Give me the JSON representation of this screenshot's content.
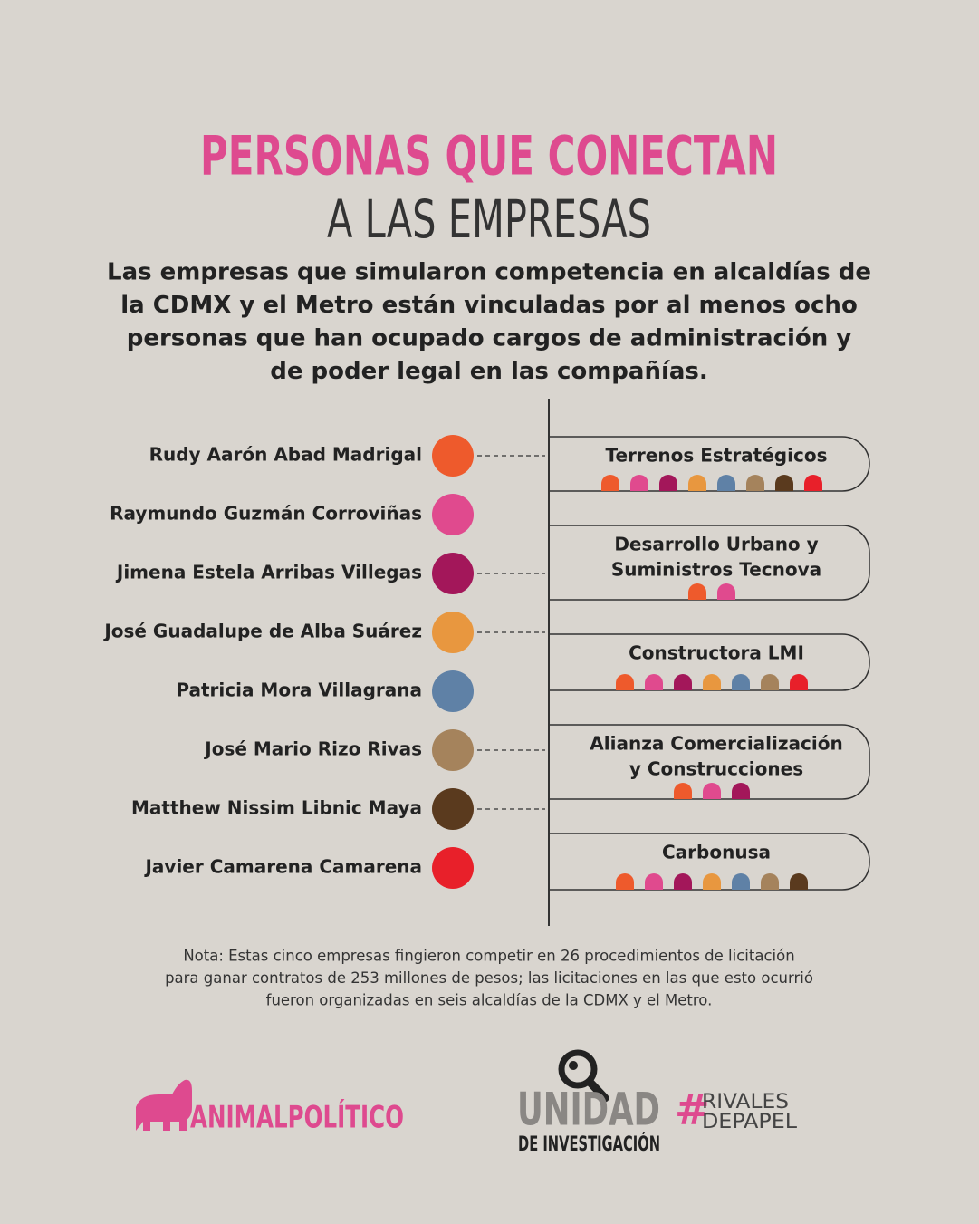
{
  "header": {
    "title_line1": "PERSONAS QUE CONECTAN",
    "title_line2": "A LAS EMPRESAS",
    "intro_lines": [
      "Las empresas que simularon competencia en alcaldías de",
      "la CDMX y el Metro están vinculadas por al menos ocho",
      "personas que han ocupado cargos de administración y",
      "de poder legal en las compañías."
    ]
  },
  "people": [
    {
      "name": "Rudy Aarón Abad Madrigal",
      "color": "#ee5a2c"
    },
    {
      "name": "Raymundo Guzmán Corroviñas",
      "color": "#e04a8e"
    },
    {
      "name": "Jimena Estela Arribas Villegas",
      "color": "#a3175a"
    },
    {
      "name": "José Guadalupe de Alba Suárez",
      "color": "#e8973f"
    },
    {
      "name": "Patricia Mora Villagrana",
      "color": "#5f81a6"
    },
    {
      "name": "José Mario Rizo Rivas",
      "color": "#a5835c"
    },
    {
      "name": "Matthew Nissim Libnic Maya",
      "color": "#5a3a1e"
    },
    {
      "name": "Javier Camarena Camarena",
      "color": "#e8202a"
    }
  ],
  "companies": [
    {
      "name_lines": [
        "Terrenos Estratégicos"
      ],
      "dots": [
        "#ee5a2c",
        "#e04a8e",
        "#a3175a",
        "#e8973f",
        "#5f81a6",
        "#a5835c",
        "#5a3a1e",
        "#e8202a"
      ]
    },
    {
      "name_lines": [
        "Desarrollo Urbano y",
        "Suministros Tecnova"
      ],
      "dots": [
        "#ee5a2c",
        "#e04a8e"
      ]
    },
    {
      "name_lines": [
        "Constructora LMI"
      ],
      "dots": [
        "#ee5a2c",
        "#e04a8e",
        "#a3175a",
        "#e8973f",
        "#5f81a6",
        "#a5835c",
        "#e8202a"
      ]
    },
    {
      "name_lines": [
        "Alianza Comercialización",
        "y Construcciones"
      ],
      "dots": [
        "#ee5a2c",
        "#e04a8e",
        "#a3175a"
      ]
    },
    {
      "name_lines": [
        "Carbonusa"
      ],
      "dots": [
        "#ee5a2c",
        "#e04a8e",
        "#a3175a",
        "#e8973f",
        "#5f81a6",
        "#a5835c",
        "#5a3a1e"
      ]
    }
  ],
  "note_lines": [
    "Nota: Estas cinco empresas fingieron competir en 26 procedimientos de licitación",
    "para ganar contratos de 253 millones de pesos; las licitaciones en las que esto ocurrió",
    "fueron organizadas en seis alcaldías de la CDMX y el Metro."
  ],
  "footer": {
    "brand": "ANIMALPOLÍTICO",
    "unit_big": "UNIDAD",
    "unit_small": "DE INVESTIGACIÓN",
    "hash": "#",
    "tag_line1": "RIVALES",
    "tag_line2": "DEPAPEL"
  }
}
